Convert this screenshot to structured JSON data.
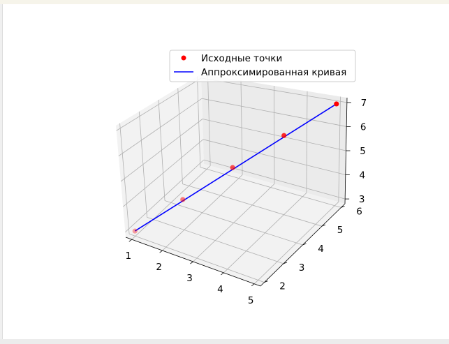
{
  "chart_data": {
    "type": "line",
    "projection": "3d",
    "title": "",
    "series": [
      {
        "name": "Исходные точки",
        "kind": "scatter",
        "color": "#ff0000",
        "points": [
          {
            "x": 1,
            "y": 2,
            "z": 3
          },
          {
            "x": 2,
            "y": 3,
            "z": 4
          },
          {
            "x": 3,
            "y": 4,
            "z": 5
          },
          {
            "x": 4,
            "y": 5,
            "z": 6
          },
          {
            "x": 5,
            "y": 6,
            "z": 7
          }
        ]
      },
      {
        "name": "Аппроксимированная кривая",
        "kind": "line",
        "color": "#0000ff",
        "points": [
          {
            "x": 1,
            "y": 2,
            "z": 3
          },
          {
            "x": 5,
            "y": 6,
            "z": 7
          }
        ]
      }
    ],
    "x_axis": {
      "ticks": [
        "1",
        "2",
        "3",
        "4",
        "5"
      ],
      "range": [
        0.8,
        5.2
      ]
    },
    "y_axis": {
      "ticks": [
        "2",
        "3",
        "4",
        "5",
        "6"
      ],
      "range": [
        1.8,
        6.2
      ]
    },
    "z_axis": {
      "ticks": [
        "3",
        "4",
        "5",
        "6",
        "7"
      ],
      "range": [
        2.8,
        7.2
      ]
    },
    "grid": true,
    "legend_position": "top-right"
  }
}
